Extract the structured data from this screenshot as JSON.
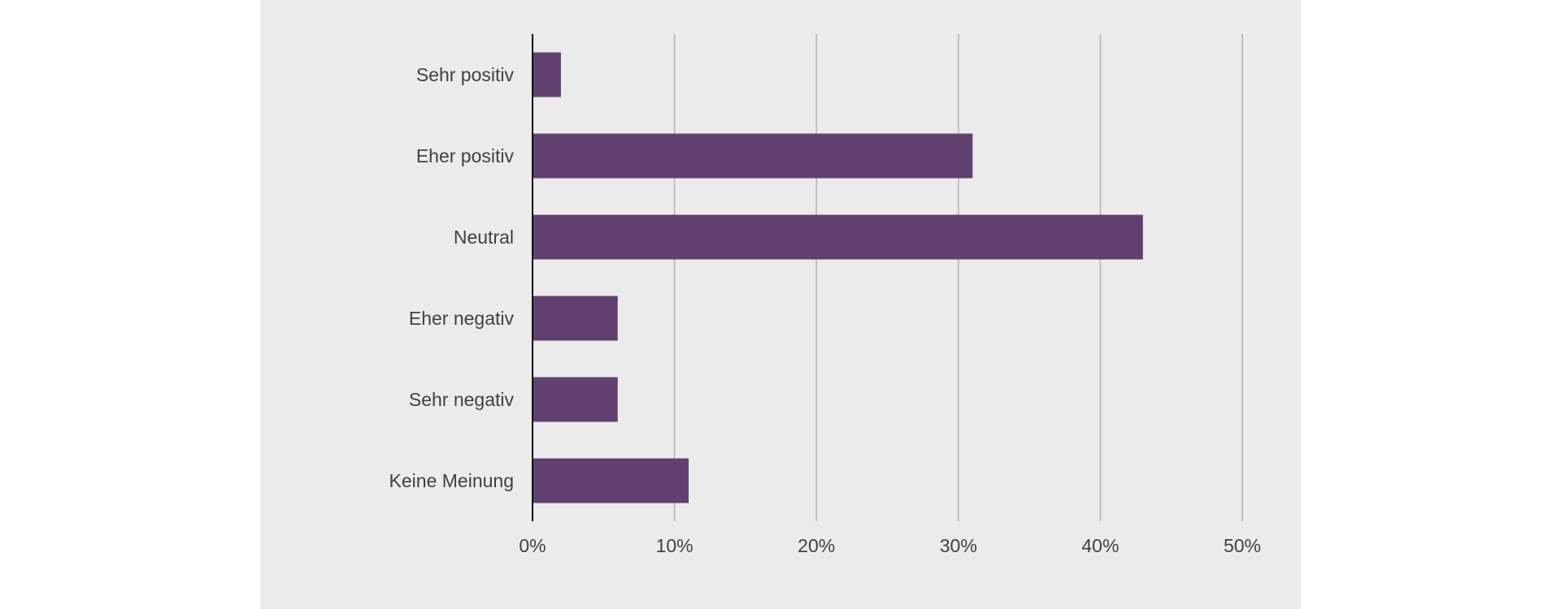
{
  "colors": {
    "background": "#ECEBEC",
    "bar": "#614070",
    "gridline": "#BFBFBF",
    "axis": "#000000",
    "label": "#404040"
  },
  "chart_data": {
    "type": "bar",
    "orientation": "horizontal",
    "title": "",
    "xlabel": "",
    "ylabel": "",
    "categories": [
      "Sehr positiv",
      "Eher positiv",
      "Neutral",
      "Eher negativ",
      "Sehr negativ",
      "Keine Meinung"
    ],
    "values": [
      2,
      31,
      43,
      6,
      6,
      11
    ],
    "unit": "%",
    "xlim": [
      0,
      50
    ],
    "xticks": [
      0,
      10,
      20,
      30,
      40,
      50
    ],
    "xtick_labels": [
      "0%",
      "10%",
      "20%",
      "30%",
      "40%",
      "50%"
    ],
    "grid": "vertical",
    "legend": "none"
  }
}
